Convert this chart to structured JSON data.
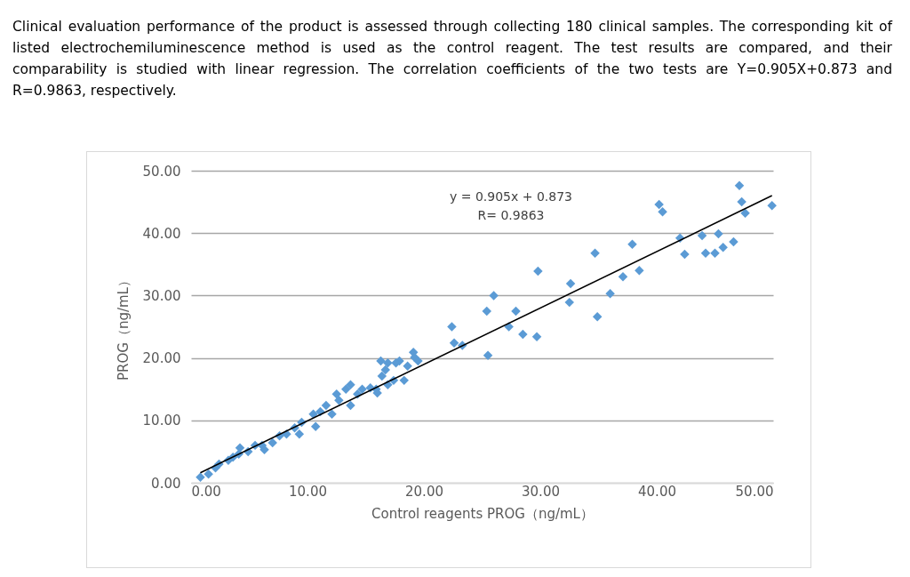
{
  "chart_data": {
    "type": "scatter",
    "xlabel": "Control reagents PROG（ng/mL）",
    "ylabel": "PROG（ng/mL）",
    "annotations": [
      "Clinical evaluation performance of the product is assessed through collecting 180 clinical samples. The corresponding kit of listed electrochemiluminescence method is used as the control reagent. The test results are compared, and their comparability is studied with linear regression. The correlation coefficients of the two tests are Y=0.905X+0.873 and R=0.9863, respectively.",
      "y = 0.905x + 0.873",
      "R= 0.9863"
    ],
    "xlim": [
      0,
      50
    ],
    "ylim": [
      0,
      50
    ],
    "xticks": [
      {
        "value": 0,
        "label": "0.00"
      },
      {
        "value": 10,
        "label": "10.00"
      },
      {
        "value": 20,
        "label": "20.00"
      },
      {
        "value": 30,
        "label": "30.00"
      },
      {
        "value": 40,
        "label": "40.00"
      },
      {
        "value": 50,
        "label": "50.00"
      }
    ],
    "yticks": [
      {
        "value": 0,
        "label": "0.00"
      },
      {
        "value": 10,
        "label": "10.00"
      },
      {
        "value": 20,
        "label": "20.00"
      },
      {
        "value": 30,
        "label": "30.00"
      },
      {
        "value": 40,
        "label": "40.00"
      },
      {
        "value": 50,
        "label": "50.00"
      }
    ],
    "grid": "y",
    "series": [
      {
        "color": "#5b9bd5",
        "marker": "diamond",
        "x": [
          0.8,
          1.5,
          2.1,
          2.4,
          3.2,
          3.6,
          4.1,
          4.2,
          4.9,
          5.5,
          6.1,
          6.3,
          7.0,
          7.6,
          8.2,
          8.9,
          9.3,
          9.5,
          10.5,
          10.7,
          11.1,
          11.6,
          12.1,
          12.5,
          12.7,
          13.3,
          13.7,
          13.7,
          14.3,
          14.7,
          15.4,
          16.0,
          16.3,
          16.4,
          16.7,
          16.9,
          17.4,
          17.9,
          18.3,
          18.6,
          19.1,
          19.2,
          19.5,
          17.6,
          16.9,
          15.9,
          25.4,
          26.0,
          25.5,
          22.4,
          22.6,
          23.3,
          29.8,
          27.9,
          27.3,
          28.5,
          29.7,
          32.6,
          32.5,
          34.7,
          34.9,
          36.0,
          37.1,
          37.9,
          38.5,
          40.2,
          40.5,
          42.0,
          42.4,
          43.9,
          44.2,
          45.0,
          45.3,
          45.7,
          46.6,
          47.1,
          47.3,
          47.6,
          49.9
        ],
        "values": [
          0.9,
          1.4,
          2.4,
          3.0,
          3.6,
          4.1,
          4.6,
          5.6,
          5.0,
          6.0,
          6.0,
          5.3,
          6.4,
          7.5,
          7.8,
          8.8,
          7.8,
          9.7,
          11.0,
          9.0,
          11.4,
          12.4,
          11.0,
          14.2,
          13.2,
          15.0,
          15.7,
          12.4,
          14.2,
          15.0,
          15.2,
          14.4,
          19.5,
          17.1,
          18.1,
          19.2,
          16.4,
          19.5,
          16.4,
          18.7,
          20.9,
          20.1,
          19.5,
          19.2,
          15.7,
          15.0,
          27.5,
          30.0,
          20.4,
          25.0,
          22.4,
          22.0,
          33.9,
          27.5,
          25.0,
          23.8,
          23.4,
          31.9,
          28.9,
          36.8,
          26.6,
          30.3,
          33.0,
          38.2,
          34.0,
          44.6,
          43.4,
          39.2,
          36.6,
          39.6,
          36.8,
          36.8,
          39.9,
          37.7,
          38.6,
          47.6,
          45.0,
          43.2,
          44.4
        ]
      },
      {
        "type": "line",
        "color": "#000000",
        "x": [
          0.8,
          49.9
        ],
        "values": [
          1.6,
          46.0
        ]
      }
    ]
  }
}
